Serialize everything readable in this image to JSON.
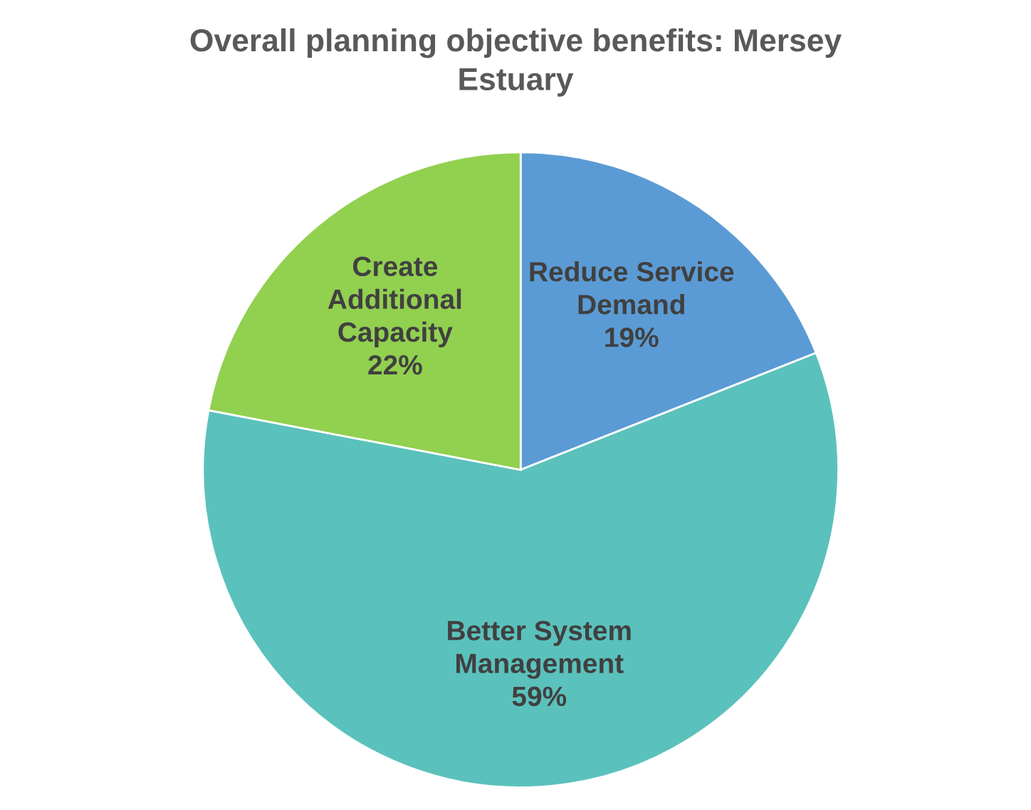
{
  "chart_data": {
    "type": "pie",
    "title": "Overall planning objective benefits: Mersey Estuary",
    "categories": [
      "Reduce Service Demand",
      "Better System Management",
      "Create Additional Capacity"
    ],
    "values": [
      19,
      59,
      22
    ],
    "colors": [
      "#5b9bd5",
      "#5bc1bc",
      "#92d050"
    ],
    "value_labels": [
      "19%",
      "59%",
      "22%"
    ]
  }
}
